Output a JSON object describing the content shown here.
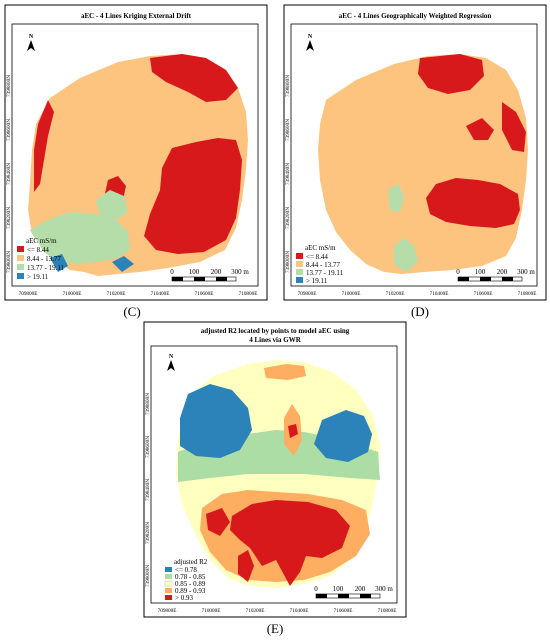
{
  "panels": {
    "c": {
      "title": "aEC - 4 Lines Kriging External Drift",
      "label": "(C)",
      "legend_title": "aEC mS/m",
      "legend": [
        {
          "label": "<= 8.44",
          "color": "#d7191c"
        },
        {
          "label": "8.44 - 13.77",
          "color": "#fdc480"
        },
        {
          "label": "13.77 - 19.11",
          "color": "#b5ddaa"
        },
        {
          "label": "> 19.11",
          "color": "#2b83ba"
        }
      ]
    },
    "d": {
      "title": "aEC - 4 Lines Geographically Weighted Regression",
      "label": "(D)",
      "legend_title": "aEC mS/m",
      "legend": [
        {
          "label": "<= 8.44",
          "color": "#d7191c"
        },
        {
          "label": "8.44 - 13.77",
          "color": "#fdc480"
        },
        {
          "label": "13.77 - 19.11",
          "color": "#b5ddaa"
        },
        {
          "label": "> 19.11",
          "color": "#2b83ba"
        }
      ]
    },
    "e": {
      "title_line1": "adjusted R2 located by points to model aEC using",
      "title_line2": "4 Lines via GWR",
      "label": "(E)",
      "legend_title": "adjusted R2",
      "legend": [
        {
          "label": "<= 0.78",
          "color": "#2b83ba"
        },
        {
          "label": "0.78 - 0.85",
          "color": "#abdda4"
        },
        {
          "label": "0.85 - 0.89",
          "color": "#ffffbf"
        },
        {
          "label": "0.89 - 0.93",
          "color": "#fdae61"
        },
        {
          "label": "> 0.93",
          "color": "#d7191c"
        }
      ]
    }
  },
  "axes": {
    "x_ticks": [
      "709800E",
      "710000E",
      "710200E",
      "710400E",
      "710600E",
      "710800E"
    ],
    "y_ticks": [
      "7398000N",
      "7398200N",
      "7398400N",
      "7398600N",
      "7398800N"
    ]
  },
  "scale_bar": {
    "labels": [
      "0",
      "100",
      "200",
      "300 m"
    ]
  },
  "north_arrow": {
    "letter": "N"
  }
}
